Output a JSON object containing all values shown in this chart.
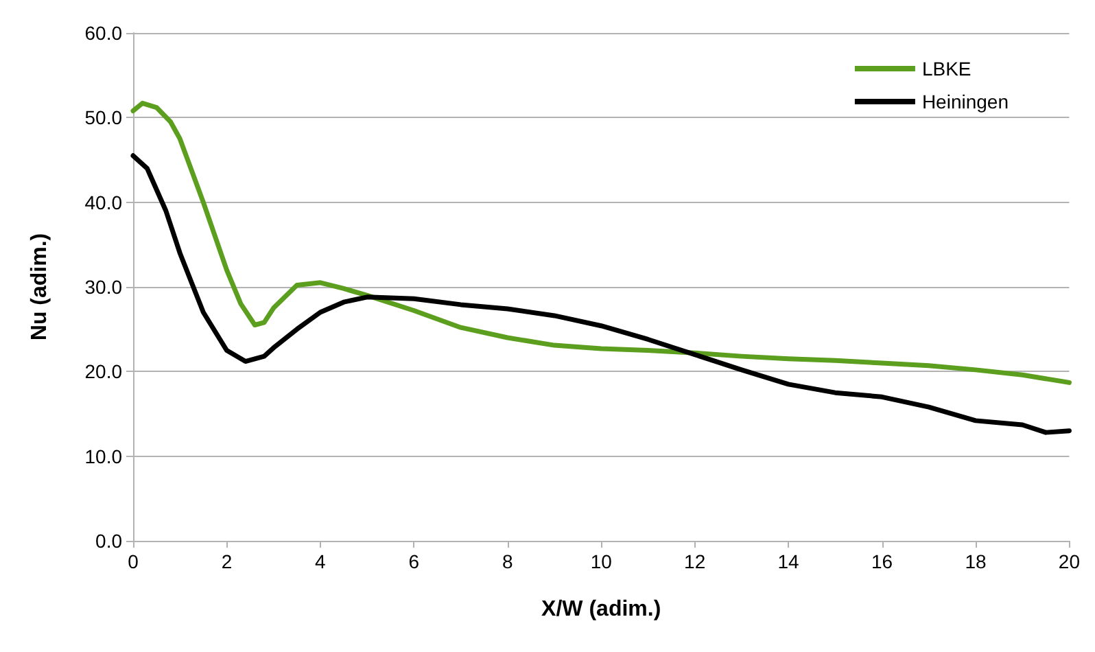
{
  "chart_data": {
    "type": "line",
    "xlabel": "X/W (adim.)",
    "ylabel": "Nu (adim.)",
    "xlim": [
      0,
      20
    ],
    "xticks": [
      0,
      2,
      4,
      6,
      8,
      10,
      12,
      14,
      16,
      18,
      20
    ],
    "ylim": [
      0,
      60
    ],
    "yticks": [
      {
        "value": 0,
        "label": "0.0"
      },
      {
        "value": 10,
        "label": "10.0"
      },
      {
        "value": 20,
        "label": "20.0"
      },
      {
        "value": 30,
        "label": "30.0"
      },
      {
        "value": 40,
        "label": "40.0"
      },
      {
        "value": 50,
        "label": "50.0"
      },
      {
        "value": 60,
        "label": "60.0"
      }
    ],
    "grid": "y",
    "legend": "top right",
    "marker": "none",
    "line_style": "solid",
    "series": [
      {
        "name": "LBKE",
        "color": "#5c9e1e",
        "x": [
          0,
          0.2,
          0.5,
          0.8,
          1,
          1.5,
          2,
          2.3,
          2.6,
          2.8,
          3,
          3.5,
          4,
          4.5,
          5,
          6,
          7,
          8,
          9,
          10,
          11,
          12,
          13,
          14,
          15,
          16,
          17,
          18,
          19,
          20
        ],
        "values": [
          50.8,
          51.7,
          51.2,
          49.5,
          47.5,
          40,
          32,
          28,
          25.5,
          25.8,
          27.5,
          30.2,
          30.5,
          29.8,
          29,
          27.2,
          25.2,
          24,
          23.1,
          22.7,
          22.5,
          22.2,
          21.8,
          21.5,
          21.3,
          21,
          20.7,
          20.2,
          19.6,
          18.7
        ]
      },
      {
        "name": "Heiningen",
        "color": "#000000",
        "x": [
          0,
          0.3,
          0.7,
          1,
          1.5,
          2,
          2.4,
          2.8,
          3,
          3.5,
          4,
          4.5,
          5,
          6,
          7,
          8,
          9,
          10,
          11,
          12,
          13,
          14,
          15,
          16,
          17,
          18,
          19,
          19.5,
          20
        ],
        "values": [
          45.5,
          44,
          39,
          34,
          27,
          22.5,
          21.2,
          21.8,
          22.8,
          25,
          27,
          28.2,
          28.8,
          28.6,
          27.9,
          27.4,
          26.6,
          25.4,
          23.8,
          22,
          20.2,
          18.5,
          17.5,
          17,
          15.8,
          14.2,
          13.7,
          12.8,
          13
        ]
      }
    ]
  }
}
